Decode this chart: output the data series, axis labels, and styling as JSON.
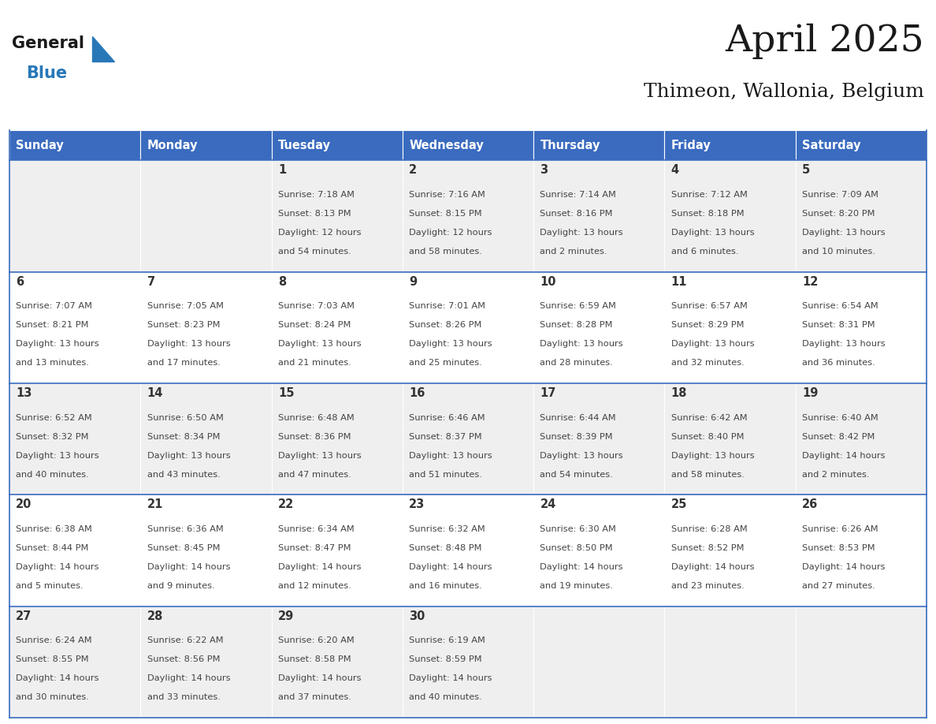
{
  "title": "April 2025",
  "subtitle": "Thimeon, Wallonia, Belgium",
  "days_of_week": [
    "Sunday",
    "Monday",
    "Tuesday",
    "Wednesday",
    "Thursday",
    "Friday",
    "Saturday"
  ],
  "header_bg": "#3A6BBF",
  "header_text": "#FFFFFF",
  "cell_bg_row0": "#EFEFEF",
  "cell_bg_row1": "#FFFFFF",
  "cell_bg_row2": "#EFEFEF",
  "cell_bg_row3": "#FFFFFF",
  "cell_bg_row4": "#EFEFEF",
  "cell_border_color": "#3A6BBF",
  "cell_text_color": "#444444",
  "day_num_color": "#333333",
  "title_color": "#1a1a1a",
  "subtitle_color": "#1a1a1a",
  "logo_black": "#1a1a1a",
  "logo_blue": "#2878b8",
  "calendar": [
    [
      {
        "day": null,
        "sunrise": null,
        "sunset": null,
        "dh": null,
        "dm": null
      },
      {
        "day": null,
        "sunrise": null,
        "sunset": null,
        "dh": null,
        "dm": null
      },
      {
        "day": 1,
        "sunrise": "7:18 AM",
        "sunset": "8:13 PM",
        "dh": 12,
        "dm": 54
      },
      {
        "day": 2,
        "sunrise": "7:16 AM",
        "sunset": "8:15 PM",
        "dh": 12,
        "dm": 58
      },
      {
        "day": 3,
        "sunrise": "7:14 AM",
        "sunset": "8:16 PM",
        "dh": 13,
        "dm": 2
      },
      {
        "day": 4,
        "sunrise": "7:12 AM",
        "sunset": "8:18 PM",
        "dh": 13,
        "dm": 6
      },
      {
        "day": 5,
        "sunrise": "7:09 AM",
        "sunset": "8:20 PM",
        "dh": 13,
        "dm": 10
      }
    ],
    [
      {
        "day": 6,
        "sunrise": "7:07 AM",
        "sunset": "8:21 PM",
        "dh": 13,
        "dm": 13
      },
      {
        "day": 7,
        "sunrise": "7:05 AM",
        "sunset": "8:23 PM",
        "dh": 13,
        "dm": 17
      },
      {
        "day": 8,
        "sunrise": "7:03 AM",
        "sunset": "8:24 PM",
        "dh": 13,
        "dm": 21
      },
      {
        "day": 9,
        "sunrise": "7:01 AM",
        "sunset": "8:26 PM",
        "dh": 13,
        "dm": 25
      },
      {
        "day": 10,
        "sunrise": "6:59 AM",
        "sunset": "8:28 PM",
        "dh": 13,
        "dm": 28
      },
      {
        "day": 11,
        "sunrise": "6:57 AM",
        "sunset": "8:29 PM",
        "dh": 13,
        "dm": 32
      },
      {
        "day": 12,
        "sunrise": "6:54 AM",
        "sunset": "8:31 PM",
        "dh": 13,
        "dm": 36
      }
    ],
    [
      {
        "day": 13,
        "sunrise": "6:52 AM",
        "sunset": "8:32 PM",
        "dh": 13,
        "dm": 40
      },
      {
        "day": 14,
        "sunrise": "6:50 AM",
        "sunset": "8:34 PM",
        "dh": 13,
        "dm": 43
      },
      {
        "day": 15,
        "sunrise": "6:48 AM",
        "sunset": "8:36 PM",
        "dh": 13,
        "dm": 47
      },
      {
        "day": 16,
        "sunrise": "6:46 AM",
        "sunset": "8:37 PM",
        "dh": 13,
        "dm": 51
      },
      {
        "day": 17,
        "sunrise": "6:44 AM",
        "sunset": "8:39 PM",
        "dh": 13,
        "dm": 54
      },
      {
        "day": 18,
        "sunrise": "6:42 AM",
        "sunset": "8:40 PM",
        "dh": 13,
        "dm": 58
      },
      {
        "day": 19,
        "sunrise": "6:40 AM",
        "sunset": "8:42 PM",
        "dh": 14,
        "dm": 2
      }
    ],
    [
      {
        "day": 20,
        "sunrise": "6:38 AM",
        "sunset": "8:44 PM",
        "dh": 14,
        "dm": 5
      },
      {
        "day": 21,
        "sunrise": "6:36 AM",
        "sunset": "8:45 PM",
        "dh": 14,
        "dm": 9
      },
      {
        "day": 22,
        "sunrise": "6:34 AM",
        "sunset": "8:47 PM",
        "dh": 14,
        "dm": 12
      },
      {
        "day": 23,
        "sunrise": "6:32 AM",
        "sunset": "8:48 PM",
        "dh": 14,
        "dm": 16
      },
      {
        "day": 24,
        "sunrise": "6:30 AM",
        "sunset": "8:50 PM",
        "dh": 14,
        "dm": 19
      },
      {
        "day": 25,
        "sunrise": "6:28 AM",
        "sunset": "8:52 PM",
        "dh": 14,
        "dm": 23
      },
      {
        "day": 26,
        "sunrise": "6:26 AM",
        "sunset": "8:53 PM",
        "dh": 14,
        "dm": 27
      }
    ],
    [
      {
        "day": 27,
        "sunrise": "6:24 AM",
        "sunset": "8:55 PM",
        "dh": 14,
        "dm": 30
      },
      {
        "day": 28,
        "sunrise": "6:22 AM",
        "sunset": "8:56 PM",
        "dh": 14,
        "dm": 33
      },
      {
        "day": 29,
        "sunrise": "6:20 AM",
        "sunset": "8:58 PM",
        "dh": 14,
        "dm": 37
      },
      {
        "day": 30,
        "sunrise": "6:19 AM",
        "sunset": "8:59 PM",
        "dh": 14,
        "dm": 40
      },
      {
        "day": null,
        "sunrise": null,
        "sunset": null,
        "dh": null,
        "dm": null
      },
      {
        "day": null,
        "sunrise": null,
        "sunset": null,
        "dh": null,
        "dm": null
      },
      {
        "day": null,
        "sunrise": null,
        "sunset": null,
        "dh": null,
        "dm": null
      }
    ]
  ]
}
